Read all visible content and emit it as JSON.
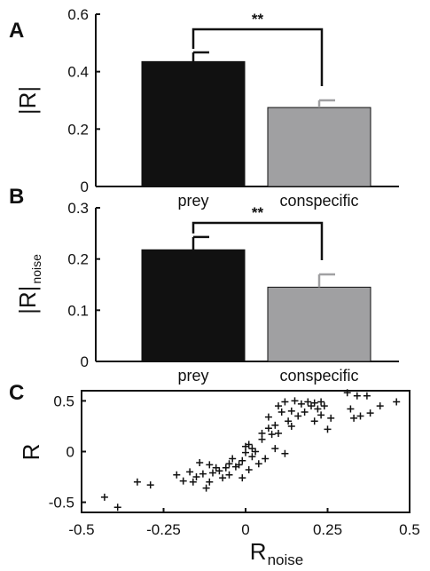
{
  "chart_data": [
    {
      "panel": "A",
      "type": "bar",
      "categories": [
        "prey",
        "conspecific"
      ],
      "values": [
        0.435,
        0.275
      ],
      "errors": [
        0.032,
        0.025
      ],
      "colors": [
        "#111111",
        "#a0a0a2"
      ],
      "error_colors": [
        "#111111",
        "#a0a0a2"
      ],
      "ylabel": "|R|",
      "ylim": [
        0,
        0.6
      ],
      "yticks": [
        "0",
        "0.2",
        "0.4",
        "0.6"
      ],
      "significance": "**"
    },
    {
      "panel": "B",
      "type": "bar",
      "categories": [
        "prey",
        "conspecific"
      ],
      "values": [
        0.218,
        0.145
      ],
      "errors": [
        0.025,
        0.025
      ],
      "colors": [
        "#111111",
        "#a0a0a2"
      ],
      "error_colors": [
        "#111111",
        "#a0a0a2"
      ],
      "ylabel": "|R|",
      "ylabel_sub": "noise",
      "ylim": [
        0,
        0.3
      ],
      "yticks": [
        "0",
        "0.1",
        "0.2",
        "0.3"
      ],
      "significance": "**"
    },
    {
      "panel": "C",
      "type": "scatter",
      "xlabel": "R",
      "xlabel_sub": "noise",
      "ylabel": "R",
      "xlim": [
        -0.5,
        0.5
      ],
      "ylim": [
        -0.6,
        0.6
      ],
      "xticks": [
        "-0.5",
        "-0.25",
        "0",
        "0.25",
        "0.5"
      ],
      "yticks": [
        "-0.5",
        "0",
        "0.5"
      ],
      "points": [
        [
          -0.43,
          -0.45
        ],
        [
          -0.39,
          -0.55
        ],
        [
          -0.33,
          -0.3
        ],
        [
          -0.29,
          -0.33
        ],
        [
          -0.21,
          -0.23
        ],
        [
          -0.19,
          -0.29
        ],
        [
          -0.17,
          -0.2
        ],
        [
          -0.16,
          -0.3
        ],
        [
          -0.15,
          -0.25
        ],
        [
          -0.14,
          -0.11
        ],
        [
          -0.13,
          -0.22
        ],
        [
          -0.12,
          -0.36
        ],
        [
          -0.11,
          -0.3
        ],
        [
          -0.11,
          -0.13
        ],
        [
          -0.1,
          -0.21
        ],
        [
          -0.09,
          -0.16
        ],
        [
          -0.08,
          -0.19
        ],
        [
          -0.07,
          -0.26
        ],
        [
          -0.06,
          -0.16
        ],
        [
          -0.05,
          -0.23
        ],
        [
          -0.05,
          -0.12
        ],
        [
          -0.04,
          -0.07
        ],
        [
          -0.03,
          -0.15
        ],
        [
          -0.02,
          -0.13
        ],
        [
          -0.01,
          -0.26
        ],
        [
          -0.01,
          -0.09
        ],
        [
          0.0,
          0.05
        ],
        [
          0.0,
          -0.01
        ],
        [
          0.01,
          0.07
        ],
        [
          0.01,
          -0.18
        ],
        [
          0.02,
          0.03
        ],
        [
          0.02,
          -0.05
        ],
        [
          0.03,
          0.0
        ],
        [
          0.04,
          -0.12
        ],
        [
          0.05,
          0.12
        ],
        [
          0.05,
          0.18
        ],
        [
          0.06,
          -0.07
        ],
        [
          0.07,
          0.23
        ],
        [
          0.07,
          0.34
        ],
        [
          0.08,
          0.17
        ],
        [
          0.09,
          0.03
        ],
        [
          0.09,
          0.26
        ],
        [
          0.1,
          0.45
        ],
        [
          0.1,
          0.18
        ],
        [
          0.11,
          0.39
        ],
        [
          0.12,
          0.49
        ],
        [
          0.12,
          -0.02
        ],
        [
          0.13,
          0.3
        ],
        [
          0.14,
          0.4
        ],
        [
          0.14,
          0.25
        ],
        [
          0.15,
          0.5
        ],
        [
          0.16,
          0.35
        ],
        [
          0.17,
          0.47
        ],
        [
          0.18,
          0.39
        ],
        [
          0.19,
          0.49
        ],
        [
          0.2,
          0.45
        ],
        [
          0.21,
          0.48
        ],
        [
          0.21,
          0.3
        ],
        [
          0.22,
          0.42
        ],
        [
          0.23,
          0.49
        ],
        [
          0.23,
          0.36
        ],
        [
          0.24,
          0.45
        ],
        [
          0.25,
          0.22
        ],
        [
          0.26,
          0.33
        ],
        [
          0.31,
          0.58
        ],
        [
          0.32,
          0.42
        ],
        [
          0.33,
          0.33
        ],
        [
          0.34,
          0.55
        ],
        [
          0.35,
          0.35
        ],
        [
          0.37,
          0.55
        ],
        [
          0.38,
          0.38
        ],
        [
          0.41,
          0.45
        ],
        [
          0.46,
          0.49
        ]
      ]
    }
  ]
}
